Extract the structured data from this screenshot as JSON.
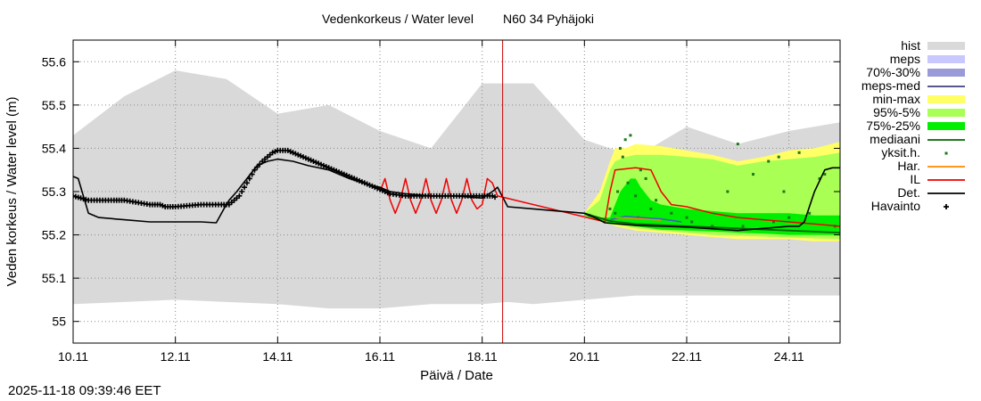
{
  "chart_data": {
    "type": "area",
    "title": "Vedenkorkeus / Water level",
    "subtitle": "N60 34 Pyhäjoki",
    "xlabel": "Päivä / Date",
    "ylabel": "Veden korkeus / Water level (m)",
    "xlim": [
      10.0,
      25.0
    ],
    "ylim": [
      54.95,
      55.65
    ],
    "grid": true,
    "x_ticks": [
      {
        "x": 10,
        "label": "10.11"
      },
      {
        "x": 12,
        "label": "12.11"
      },
      {
        "x": 14,
        "label": "14.11"
      },
      {
        "x": 16,
        "label": "16.11"
      },
      {
        "x": 18,
        "label": "18.11"
      },
      {
        "x": 20,
        "label": "20.11"
      },
      {
        "x": 22,
        "label": "22.11"
      },
      {
        "x": 24,
        "label": "24.11"
      }
    ],
    "y_ticks": [
      {
        "y": 55.0,
        "label": "55"
      },
      {
        "y": 55.1,
        "label": "55.1"
      },
      {
        "y": 55.2,
        "label": "55.2"
      },
      {
        "y": 55.3,
        "label": "55.3"
      },
      {
        "y": 55.4,
        "label": "55.4"
      },
      {
        "y": 55.5,
        "label": "55.5"
      },
      {
        "y": 55.6,
        "label": "55.6"
      }
    ],
    "now_marker_x": 18.4,
    "legend": [
      {
        "key": "hist",
        "label": "hist",
        "style": "box",
        "color": "#d9d9d9"
      },
      {
        "key": "meps",
        "label": "meps",
        "style": "box",
        "color": "#c8c8ff"
      },
      {
        "key": "meps_70_30",
        "label": "70%-30%",
        "style": "box",
        "color": "#9a9ad8"
      },
      {
        "key": "meps_med",
        "label": "meps-med",
        "style": "line",
        "color": "#404080"
      },
      {
        "key": "min_max",
        "label": "min-max",
        "style": "box",
        "color": "#ffff66"
      },
      {
        "key": "p95_5",
        "label": "95%-5%",
        "style": "box",
        "color": "#aaff55"
      },
      {
        "key": "p75_25",
        "label": "75%-25%",
        "style": "box",
        "color": "#00ee00"
      },
      {
        "key": "mediaani",
        "label": "mediaani",
        "style": "line",
        "color": "#006400"
      },
      {
        "key": "yksit",
        "label": "yksit.h.",
        "style": "dot",
        "color": "#1a7a1a"
      },
      {
        "key": "har",
        "label": "Har.",
        "style": "line",
        "color": "#ff8800"
      },
      {
        "key": "il",
        "label": "IL",
        "style": "line",
        "color": "#ee0000"
      },
      {
        "key": "det",
        "label": "Det.",
        "style": "line",
        "color": "#000000"
      },
      {
        "key": "havainto",
        "label": "Havainto",
        "style": "plus",
        "color": "#000000"
      }
    ],
    "hist_band": {
      "x": [
        10.0,
        11.0,
        12.0,
        13.0,
        14.0,
        15.0,
        16.0,
        17.0,
        18.0,
        18.5,
        19.0,
        20.0,
        21.0,
        22.0,
        23.0,
        24.0,
        25.0
      ],
      "upper": [
        55.43,
        55.52,
        55.58,
        55.56,
        55.48,
        55.5,
        55.44,
        55.4,
        55.55,
        55.55,
        55.55,
        55.42,
        55.38,
        55.45,
        55.41,
        55.44,
        55.46
      ],
      "lower": [
        55.04,
        55.045,
        55.05,
        55.045,
        55.04,
        55.03,
        55.03,
        55.04,
        55.04,
        55.045,
        55.04,
        55.05,
        55.06,
        55.06,
        55.06,
        55.06,
        55.06
      ]
    },
    "series": [
      {
        "name": "Havainto",
        "type": "observed",
        "x": [
          10.0,
          10.15,
          10.3,
          10.8,
          11.0,
          11.5,
          11.7,
          11.8,
          12.0,
          12.5,
          12.9,
          13.05,
          13.15,
          13.25,
          13.4,
          13.55,
          13.7,
          13.8,
          13.9,
          14.0,
          14.2,
          14.3,
          14.4,
          14.6,
          14.8,
          15.0,
          15.2,
          15.4,
          15.6,
          15.8,
          16.0,
          16.1,
          16.2,
          16.5,
          17.0,
          17.5,
          18.0,
          18.2,
          18.3
        ],
        "values": [
          55.29,
          55.285,
          55.28,
          55.28,
          55.28,
          55.27,
          55.27,
          55.265,
          55.265,
          55.27,
          55.27,
          55.27,
          55.28,
          55.29,
          55.32,
          55.35,
          55.37,
          55.38,
          55.39,
          55.395,
          55.395,
          55.39,
          55.385,
          55.375,
          55.365,
          55.355,
          55.345,
          55.335,
          55.325,
          55.315,
          55.305,
          55.3,
          55.295,
          55.29,
          55.29,
          55.29,
          55.29,
          55.29,
          55.285
        ]
      },
      {
        "name": "Det.",
        "type": "line",
        "x": [
          10.0,
          10.1,
          10.3,
          10.5,
          11.0,
          11.5,
          12.0,
          12.5,
          12.8,
          12.95,
          13.05,
          13.2,
          13.4,
          13.6,
          13.8,
          14.0,
          14.3,
          14.6,
          15.0,
          15.4,
          15.8,
          16.0,
          16.1,
          16.2,
          16.5,
          17.0,
          17.5,
          18.0,
          18.2,
          18.3,
          18.5,
          19.0,
          19.5,
          20.0,
          20.2,
          20.4,
          21.0,
          22.0,
          23.0,
          24.0,
          24.2,
          24.3,
          24.5,
          24.7,
          24.85,
          25.0
        ],
        "values": [
          55.335,
          55.33,
          55.25,
          55.24,
          55.235,
          55.23,
          55.23,
          55.23,
          55.228,
          55.26,
          55.28,
          55.3,
          55.33,
          55.36,
          55.37,
          55.375,
          55.37,
          55.36,
          55.35,
          55.33,
          55.315,
          55.31,
          55.305,
          55.3,
          55.295,
          55.29,
          55.29,
          55.285,
          55.3,
          55.31,
          55.265,
          55.26,
          55.255,
          55.25,
          55.24,
          55.228,
          55.222,
          55.218,
          55.21,
          55.22,
          55.22,
          55.23,
          55.3,
          55.35,
          55.355,
          55.355
        ]
      },
      {
        "name": "IL",
        "type": "line",
        "x": [
          16.0,
          16.1,
          16.2,
          16.3,
          16.4,
          16.5,
          16.6,
          16.7,
          16.8,
          16.9,
          17.0,
          17.1,
          17.2,
          17.3,
          17.4,
          17.5,
          17.6,
          17.7,
          17.8,
          17.9,
          18.0,
          18.1,
          18.2,
          18.3,
          20.4,
          20.5,
          20.6,
          21.0,
          21.3,
          21.5,
          21.7,
          22.0,
          22.5,
          23.0,
          23.5,
          24.0,
          24.5,
          25.0
        ],
        "values": [
          55.3,
          55.33,
          55.28,
          55.25,
          55.28,
          55.33,
          55.28,
          55.25,
          55.28,
          55.33,
          55.28,
          55.25,
          55.28,
          55.33,
          55.28,
          55.25,
          55.28,
          55.33,
          55.28,
          55.26,
          55.27,
          55.33,
          55.32,
          55.29,
          55.23,
          55.3,
          55.35,
          55.355,
          55.35,
          55.3,
          55.27,
          55.265,
          55.25,
          55.24,
          55.235,
          55.23,
          55.225,
          55.22
        ]
      },
      {
        "name": "mediaani",
        "type": "line",
        "x": [
          20.0,
          20.5,
          21.0,
          22.0,
          23.0,
          24.0,
          25.0
        ],
        "values": [
          55.25,
          55.232,
          55.225,
          55.22,
          55.215,
          55.21,
          55.205
        ]
      },
      {
        "name": "meps-med",
        "type": "line",
        "x": [
          20.5,
          20.8,
          21.1,
          21.5,
          21.9
        ],
        "values": [
          55.235,
          55.243,
          55.24,
          55.237,
          55.23
        ]
      },
      {
        "name": "Har.",
        "type": "line",
        "x": [
          20.6,
          21.0,
          21.5
        ],
        "values": [
          55.24,
          55.238,
          55.234
        ]
      }
    ],
    "bands": [
      {
        "name": "min-max",
        "x": [
          20.0,
          20.3,
          20.5,
          20.6,
          20.8,
          21.0,
          21.5,
          22.0,
          22.5,
          23.0,
          23.5,
          24.0,
          24.5,
          25.0
        ],
        "upper": [
          55.25,
          55.3,
          55.37,
          55.4,
          55.4,
          55.41,
          55.405,
          55.395,
          55.385,
          55.37,
          55.38,
          55.395,
          55.4,
          55.415
        ],
        "lower": [
          55.245,
          55.23,
          55.225,
          55.22,
          55.215,
          55.21,
          55.205,
          55.2,
          55.195,
          55.19,
          55.19,
          55.19,
          55.185,
          55.185
        ]
      },
      {
        "name": "95%-5%",
        "x": [
          20.0,
          20.3,
          20.5,
          20.6,
          20.8,
          21.0,
          21.5,
          22.0,
          22.5,
          23.0,
          23.5,
          24.0,
          24.5,
          25.0
        ],
        "upper": [
          55.25,
          55.28,
          55.35,
          55.37,
          55.38,
          55.385,
          55.385,
          55.38,
          55.375,
          55.36,
          55.37,
          55.375,
          55.38,
          55.39
        ],
        "lower": [
          55.245,
          55.232,
          55.226,
          55.223,
          55.22,
          55.215,
          55.21,
          55.205,
          55.2,
          55.198,
          55.196,
          55.194,
          55.192,
          55.19
        ]
      },
      {
        "name": "75%-25%",
        "x": [
          20.0,
          20.3,
          20.5,
          20.7,
          20.9,
          21.0,
          21.1,
          21.3,
          21.5,
          22.0,
          22.5,
          23.0,
          23.5,
          24.0,
          24.5,
          25.0
        ],
        "upper": [
          55.25,
          55.24,
          55.24,
          55.3,
          55.33,
          55.33,
          55.31,
          55.28,
          55.27,
          55.26,
          55.255,
          55.25,
          55.25,
          55.25,
          55.245,
          55.245
        ],
        "lower": [
          55.245,
          55.233,
          55.228,
          55.225,
          55.222,
          55.22,
          55.218,
          55.215,
          55.212,
          55.21,
          55.208,
          55.205,
          55.203,
          55.2,
          55.2,
          55.2
        ]
      }
    ],
    "yksit_points": {
      "x": [
        20.1,
        20.5,
        20.6,
        20.7,
        20.75,
        20.8,
        20.9,
        21.0,
        21.1,
        21.2,
        21.4,
        21.7,
        22.1,
        22.5,
        22.8,
        23.0,
        23.3,
        23.6,
        23.7,
        23.8,
        24.0,
        24.2,
        24.4,
        24.7,
        24.9,
        20.65,
        20.85,
        21.05,
        21.3,
        22.0,
        23.1,
        23.9,
        24.6
      ],
      "values": [
        55.245,
        55.26,
        55.25,
        55.4,
        55.38,
        55.42,
        55.43,
        55.29,
        55.35,
        55.33,
        55.28,
        55.25,
        55.23,
        55.22,
        55.3,
        55.41,
        55.34,
        55.37,
        55.23,
        55.38,
        55.24,
        55.39,
        55.25,
        55.34,
        55.22,
        55.3,
        55.32,
        55.24,
        55.26,
        55.24,
        55.22,
        55.3,
        55.33
      ]
    }
  },
  "footer": {
    "timestamp": "2025-11-18 09:39:46 EET"
  }
}
